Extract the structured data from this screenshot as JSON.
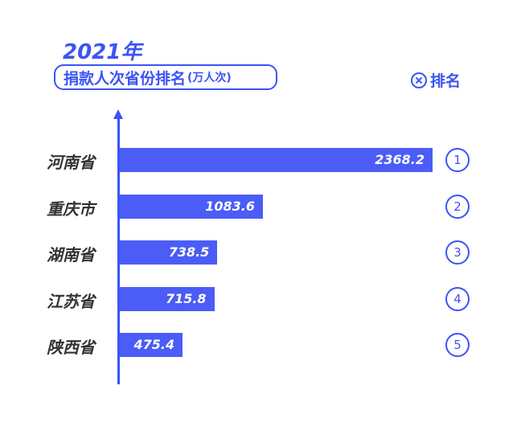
{
  "header": {
    "year": "2021年",
    "title": "捐款人次省份排名",
    "unit": "(万人次)",
    "rank_label": "排名"
  },
  "colors": {
    "accent": "#3b53f5",
    "bar": "#4b5cf7"
  },
  "chart_data": {
    "type": "bar",
    "orientation": "horizontal",
    "title": "捐款人次省份排名",
    "categories": [
      "河南省",
      "重庆市",
      "湖南省",
      "江苏省",
      "陕西省"
    ],
    "values": [
      2368.2,
      1083.6,
      738.5,
      715.8,
      475.4
    ],
    "value_labels": [
      "2368.2",
      "1083.6",
      "738.5",
      "715.8",
      "475.4"
    ],
    "ranks": [
      "1",
      "2",
      "3",
      "4",
      "5"
    ]
  }
}
